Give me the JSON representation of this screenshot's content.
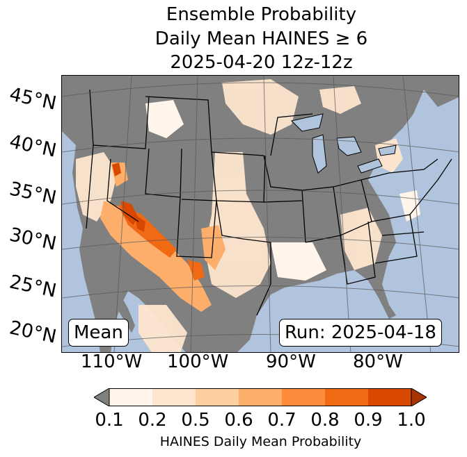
{
  "title": {
    "line1": "Ensemble Probability",
    "line2": "Daily Mean HAINES ≥ 6",
    "line3": "2025-04-20 12z-12z"
  },
  "map": {
    "latitude_labels": [
      "45°N",
      "40°N",
      "35°N",
      "30°N",
      "25°N",
      "20°N"
    ],
    "longitude_labels": [
      "110°W",
      "100°W",
      "90°W",
      "80°W"
    ],
    "statistic_label": "Mean",
    "run_label": "Run: 2025-04-18",
    "colors": {
      "ocean": "#b0c4de",
      "land_no_data": "#808080",
      "lakes": "#b0c4de",
      "borders": "#000000",
      "graticule": "#555555"
    }
  },
  "colorbar": {
    "ticks": [
      "0.1",
      "0.2",
      "0.5",
      "0.6",
      "0.7",
      "0.8",
      "0.9",
      "1.0"
    ],
    "label": "HAINES Daily Mean Probability",
    "under_color": "#808080",
    "bin_colors": [
      "#fff5eb",
      "#fee6ce",
      "#fdd0a2",
      "#fdae6b",
      "#fd8d3c",
      "#f16913",
      "#d94801",
      "#a63603"
    ]
  }
}
